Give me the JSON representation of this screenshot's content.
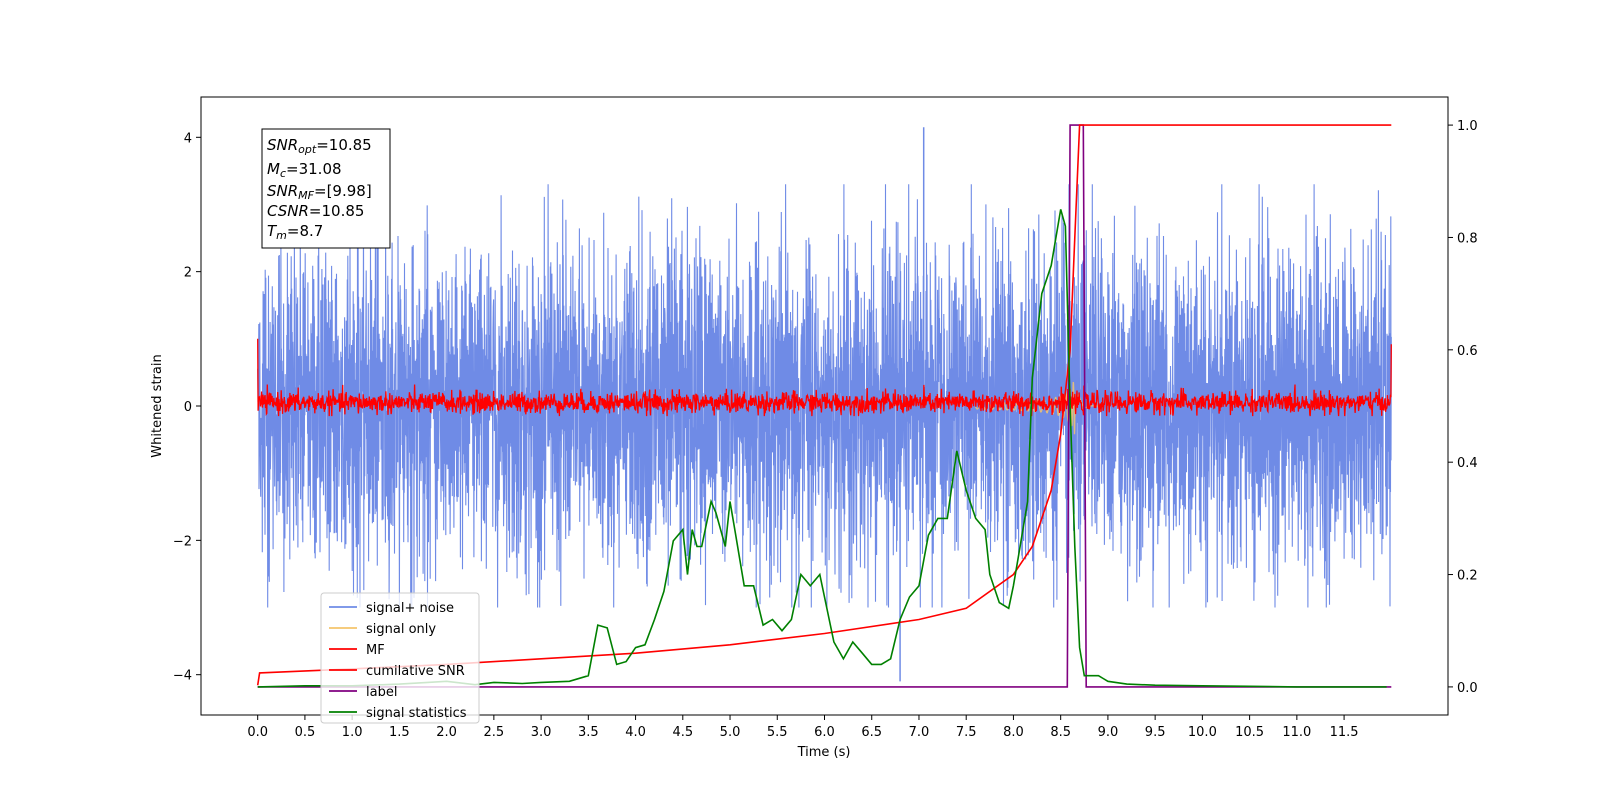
{
  "chart_data": {
    "type": "line",
    "xlabel": "Time (s)",
    "ylabel": "Whitened strain",
    "xlim": [
      -0.6,
      12.6
    ],
    "ylim": [
      -4.6,
      4.6
    ],
    "ylim_right": [
      -0.05,
      1.05
    ],
    "x_ticks": [
      "0.0",
      "0.5",
      "1.0",
      "1.5",
      "2.0",
      "2.5",
      "3.0",
      "3.5",
      "4.0",
      "4.5",
      "5.0",
      "5.5",
      "6.0",
      "6.5",
      "7.0",
      "7.5",
      "8.0",
      "8.5",
      "9.0",
      "9.5",
      "10.0",
      "10.5",
      "11.0",
      "11.5"
    ],
    "y_ticks_left": [
      "4",
      "2",
      "0",
      "−2",
      "−4"
    ],
    "y_ticks_right": [
      "1.0",
      "0.8",
      "0.6",
      "0.4",
      "0.2",
      "0.0"
    ],
    "grid": false,
    "legend_position": "lower-left",
    "info_box": {
      "snr_opt_base": "SNR",
      "snr_opt_sub": "opt",
      "snr_opt_val": "=10.85",
      "mc_base": "M",
      "mc_sub": "c",
      "mc_val": "=31.08",
      "snr_mf_base": "SNR",
      "snr_mf_sub": "MF",
      "snr_mf_val": "=[9.98]",
      "csnr_base": "CSNR",
      "csnr_val": "=10.85",
      "tm_base": "T",
      "tm_sub": "m",
      "tm_val": "=8.7"
    },
    "series": [
      {
        "name": "signal+ noise",
        "color": "#6f8be6",
        "axis": "left",
        "style": "noise",
        "duration": 12.0,
        "amplitude_peak": 4.15,
        "negative_peak": -4.1
      },
      {
        "name": "signal only",
        "color": "#f5c46c",
        "axis": "left",
        "style": "chirp",
        "merger_time": 8.65,
        "peak_amplitude": 0.45
      },
      {
        "name": "MF",
        "color": "#ff0000",
        "axis": "left",
        "style": "noise_small",
        "band": [
          -0.15,
          0.25
        ]
      },
      {
        "name": "cumilative SNR",
        "color": "#ff0000",
        "axis": "right",
        "x": [
          0.0,
          0.02,
          1.0,
          2.0,
          3.0,
          4.0,
          5.0,
          6.0,
          7.0,
          7.5,
          8.0,
          8.2,
          8.4,
          8.5,
          8.6,
          8.65,
          8.7,
          12.0
        ],
        "y": [
          0.003,
          0.025,
          0.032,
          0.04,
          0.05,
          0.06,
          0.075,
          0.095,
          0.12,
          0.14,
          0.2,
          0.25,
          0.35,
          0.45,
          0.6,
          0.8,
          1.0,
          1.0
        ]
      },
      {
        "name": "label",
        "color": "#800080",
        "axis": "right",
        "x": [
          0.0,
          8.57,
          8.6,
          8.74,
          8.77,
          12.0
        ],
        "y": [
          0.0,
          0.0,
          1.0,
          1.0,
          0.0,
          0.0
        ]
      },
      {
        "name": "signal statistics",
        "color": "#008000",
        "axis": "right",
        "x": [
          0.0,
          0.5,
          1.0,
          1.5,
          1.8,
          2.0,
          2.3,
          2.5,
          2.8,
          3.0,
          3.3,
          3.5,
          3.6,
          3.7,
          3.8,
          3.9,
          4.0,
          4.1,
          4.2,
          4.3,
          4.4,
          4.5,
          4.55,
          4.6,
          4.65,
          4.7,
          4.8,
          4.85,
          4.95,
          5.0,
          5.05,
          5.15,
          5.25,
          5.35,
          5.45,
          5.55,
          5.65,
          5.75,
          5.85,
          5.95,
          6.0,
          6.1,
          6.2,
          6.3,
          6.4,
          6.5,
          6.6,
          6.7,
          6.8,
          6.9,
          7.0,
          7.1,
          7.2,
          7.3,
          7.4,
          7.5,
          7.6,
          7.7,
          7.75,
          7.85,
          7.95,
          8.0,
          8.05,
          8.15,
          8.2,
          8.3,
          8.4,
          8.5,
          8.55,
          8.6,
          8.65,
          8.7,
          8.75,
          8.8,
          8.85,
          8.9,
          8.95,
          9.0,
          9.2,
          9.5,
          10.0,
          10.5,
          11.0,
          11.5,
          11.95
        ],
        "y": [
          0.0,
          0.002,
          0.002,
          0.005,
          0.008,
          0.01,
          0.004,
          0.008,
          0.006,
          0.008,
          0.01,
          0.02,
          0.11,
          0.105,
          0.04,
          0.045,
          0.07,
          0.075,
          0.12,
          0.17,
          0.26,
          0.28,
          0.2,
          0.28,
          0.25,
          0.25,
          0.33,
          0.31,
          0.25,
          0.33,
          0.28,
          0.18,
          0.18,
          0.11,
          0.12,
          0.1,
          0.12,
          0.2,
          0.18,
          0.2,
          0.16,
          0.08,
          0.05,
          0.08,
          0.06,
          0.04,
          0.04,
          0.05,
          0.12,
          0.16,
          0.18,
          0.27,
          0.3,
          0.3,
          0.42,
          0.35,
          0.3,
          0.28,
          0.2,
          0.15,
          0.14,
          0.18,
          0.23,
          0.33,
          0.55,
          0.7,
          0.75,
          0.85,
          0.82,
          0.5,
          0.25,
          0.07,
          0.02,
          0.02,
          0.02,
          0.02,
          0.015,
          0.01,
          0.005,
          0.003,
          0.002,
          0.001,
          0.0,
          0.0,
          0.0
        ]
      }
    ]
  },
  "legend": {
    "items": [
      "signal+ noise",
      "signal only",
      "MF",
      "cumilative SNR",
      "label",
      "signal statistics"
    ]
  }
}
